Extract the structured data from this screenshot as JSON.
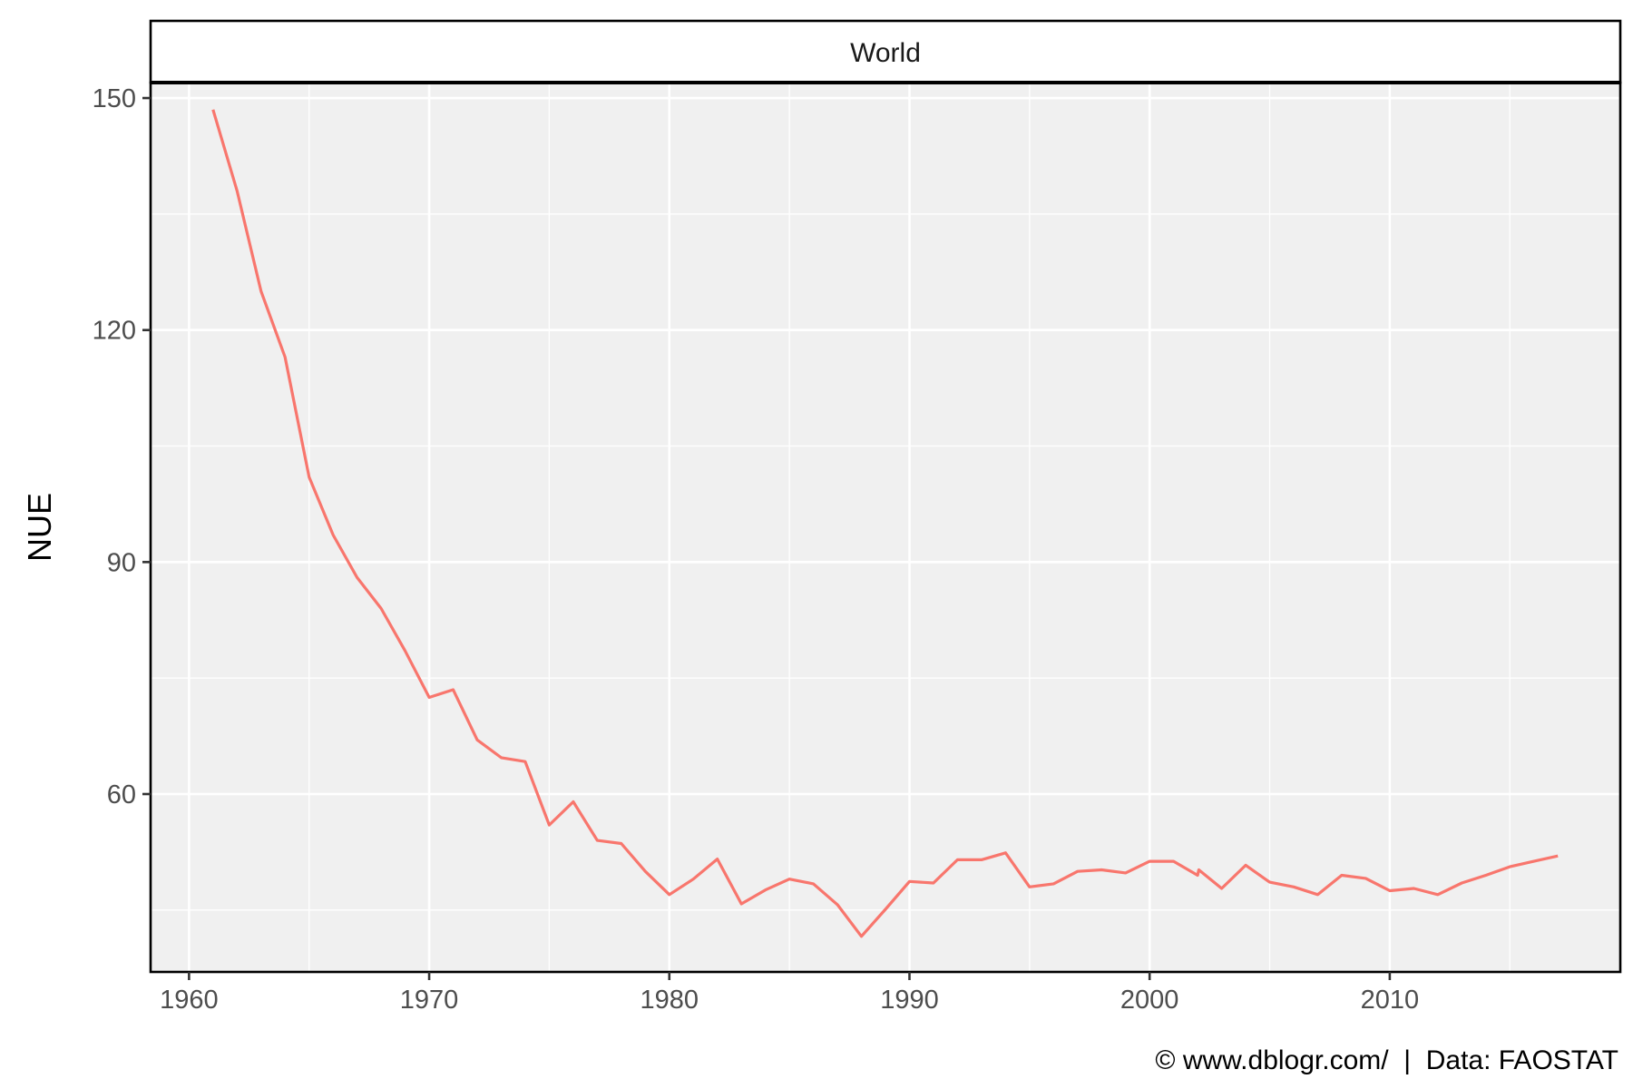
{
  "chart_data": {
    "type": "line",
    "facet": "World",
    "ylabel": "NUE",
    "xlabel": "",
    "caption": "© www.dblogr.com/  |  Data: FAOSTAT",
    "xlim": [
      1958.4,
      2019.6
    ],
    "ylim": [
      37,
      152
    ],
    "x_ticks": [
      1960,
      1970,
      1980,
      1990,
      2000,
      2010
    ],
    "y_ticks": [
      60,
      90,
      120,
      150
    ],
    "grid": true,
    "colors": {
      "series": "#f8766d",
      "panel": "#f0f0f0",
      "grid": "#ffffff"
    },
    "series": [
      {
        "x": [
          1961,
          1962,
          1963,
          1964,
          1965,
          1966,
          1967,
          1968,
          1969,
          1970,
          1971,
          1972,
          1973,
          1974,
          1975,
          1976,
          1977,
          1978,
          1979,
          1980,
          1981,
          1982,
          1983,
          1984,
          1985,
          1986,
          1987,
          1988,
          1989,
          1990,
          1991,
          1992,
          1993,
          1994,
          1995,
          1996,
          1997,
          1998,
          1999,
          2000,
          2001,
          2002,
          2002.05,
          2003,
          2004,
          2005,
          2006,
          2007,
          2008,
          2009,
          2010,
          2011,
          2012,
          2013,
          2014,
          2015,
          2016,
          2017
        ],
        "values": [
          148.5,
          138,
          125,
          116.5,
          101,
          93.5,
          88,
          84,
          78.5,
          72.5,
          73.5,
          67,
          64.7,
          64.2,
          56,
          59,
          54,
          53.6,
          50,
          47,
          49,
          51.6,
          45.8,
          47.6,
          49,
          48.4,
          45.7,
          41.6,
          45.1,
          48.7,
          48.5,
          51.5,
          51.5,
          52.4,
          48,
          48.4,
          50,
          50.2,
          49.8,
          51.3,
          51.3,
          49.5,
          50.2,
          47.8,
          50.8,
          48.6,
          48,
          47,
          49.5,
          49.1,
          47.5,
          47.8,
          47,
          48.5,
          49.5,
          50.6,
          51.3,
          52
        ]
      }
    ]
  }
}
